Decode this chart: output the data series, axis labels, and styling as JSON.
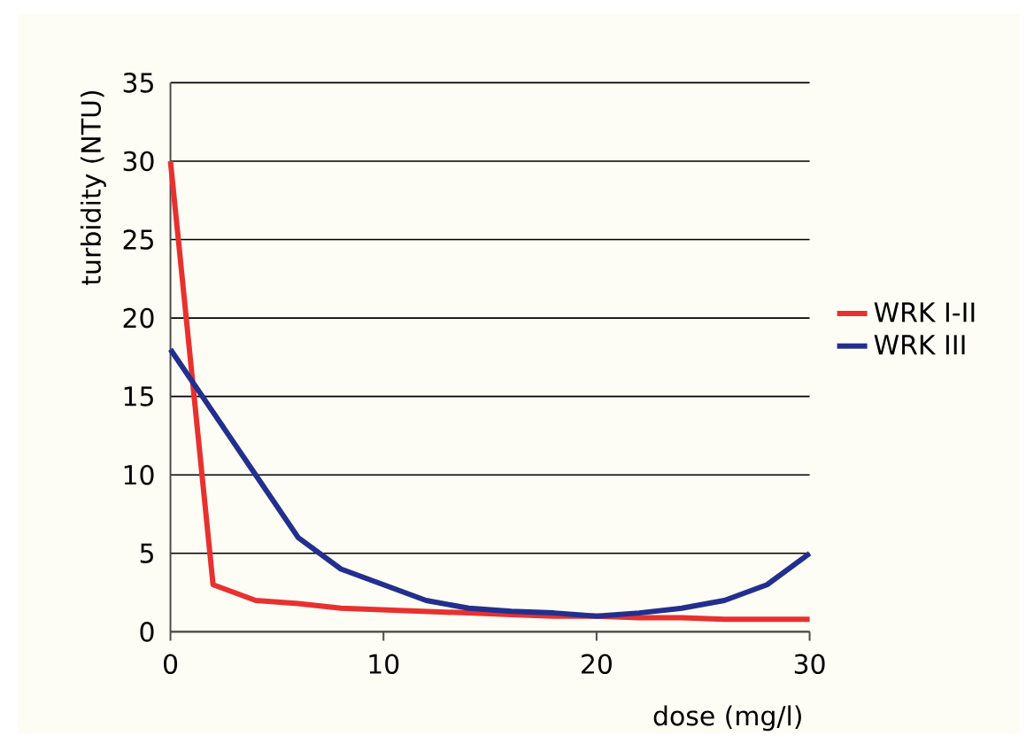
{
  "chart_data": {
    "type": "line",
    "xlabel": "dose (mg/l)",
    "ylabel": "turbidity (NTU)",
    "x": [
      0,
      2,
      4,
      6,
      8,
      10,
      12,
      14,
      16,
      18,
      20,
      22,
      24,
      26,
      28,
      30
    ],
    "series": [
      {
        "name": "WRK I-II",
        "color": "#e8312f",
        "values": [
          30,
          3,
          2,
          1.8,
          1.5,
          1.4,
          1.3,
          1.2,
          1.1,
          1.0,
          1.0,
          0.9,
          0.9,
          0.8,
          0.8,
          0.8
        ]
      },
      {
        "name": "WRK III",
        "color": "#232f8e",
        "values": [
          18,
          14,
          10,
          6,
          4,
          3,
          2,
          1.5,
          1.3,
          1.2,
          1.0,
          1.2,
          1.5,
          2,
          3,
          5
        ]
      }
    ],
    "xlim": [
      0,
      30
    ],
    "ylim": [
      0,
      35
    ],
    "xticks": [
      0,
      10,
      20,
      30
    ],
    "yticks": [
      0,
      5,
      10,
      15,
      20,
      25,
      30,
      35
    ],
    "grid": "y",
    "legend": "right",
    "marker": "none",
    "line_style": "solid"
  }
}
